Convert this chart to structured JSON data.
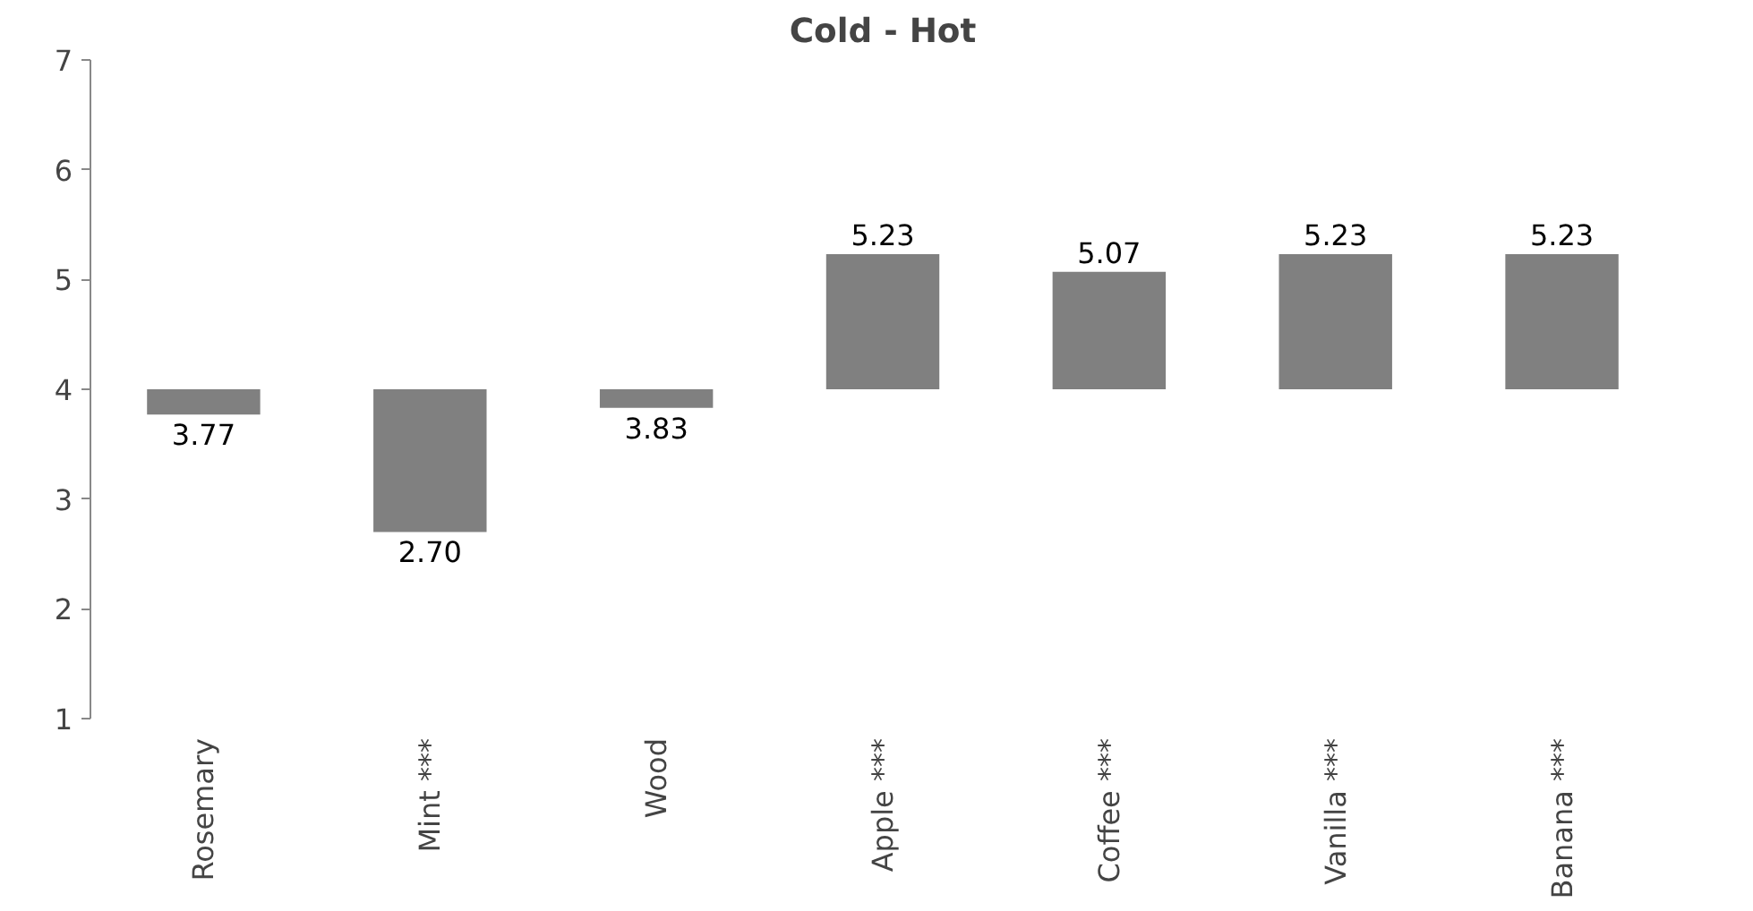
{
  "chart_data": {
    "type": "bar",
    "title": "Cold - Hot",
    "categories": [
      "Rosemary",
      "Mint ***",
      "Wood",
      "Apple ***",
      "Coffee ***",
      "Vanilla ***",
      "Banana ***"
    ],
    "base": [
      4,
      4,
      4,
      4,
      4,
      4,
      4
    ],
    "values": [
      -0.23,
      -1.3,
      -0.17,
      1.23,
      1.07,
      1.23,
      1.23
    ],
    "value_labels": [
      "3.77",
      "2.70",
      "3.83",
      "5.23",
      "5.07",
      "5.23",
      "5.23"
    ],
    "color": "#808080",
    "ylim": [
      1,
      7
    ],
    "yticks": [
      1,
      2,
      3,
      4,
      5,
      6,
      7
    ],
    "grid": false
  }
}
